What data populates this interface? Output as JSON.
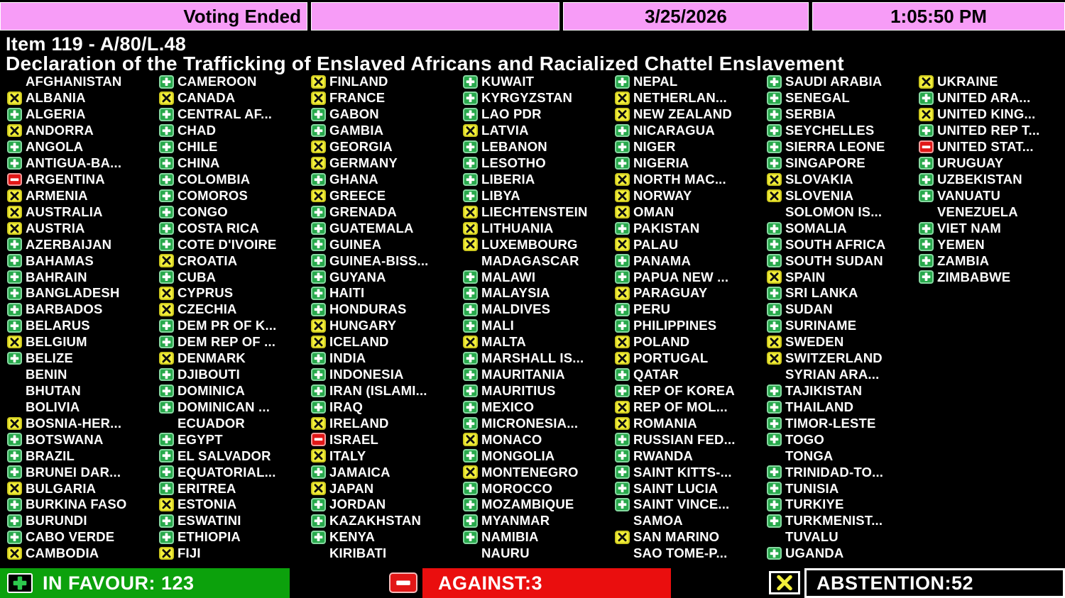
{
  "header": {
    "status": "Voting Ended",
    "date": "3/25/2026",
    "time": "1:05:50 PM"
  },
  "title": {
    "item": "Item 119 - A/80/L.48",
    "description": "Declaration of the Trafficking of Enslaved Africans and Racialized Chattel Enslavement"
  },
  "summary": {
    "in_favour": "IN FAVOUR: 123",
    "against": "AGAINST:3",
    "abstention": "ABSTENTION:52",
    "in_favour_count": 123,
    "against_count": 3,
    "abstention_count": 52
  },
  "colors": {
    "header_pink": "#F79CF7",
    "favour_green": "#28A94C",
    "abstain_yellow": "#F2EE3A",
    "against_red": "#E21717",
    "summary_green_bg": "#0CA10C",
    "summary_red_bg": "#EA0E0E",
    "text_white": "#FFFFFF",
    "background": "#000000"
  },
  "votes": {
    "legend": {
      "Y": "in-favour",
      "N": "against",
      "A": "abstention",
      "": "not-voting"
    },
    "columns": [
      [
        {
          "name": "AFGHANISTAN",
          "vote": ""
        },
        {
          "name": "ALBANIA",
          "vote": "A"
        },
        {
          "name": "ALGERIA",
          "vote": "Y"
        },
        {
          "name": "ANDORRA",
          "vote": "A"
        },
        {
          "name": "ANGOLA",
          "vote": "Y"
        },
        {
          "name": "ANTIGUA-BA...",
          "vote": "Y"
        },
        {
          "name": "ARGENTINA",
          "vote": "N"
        },
        {
          "name": "ARMENIA",
          "vote": "A"
        },
        {
          "name": "AUSTRALIA",
          "vote": "A"
        },
        {
          "name": "AUSTRIA",
          "vote": "A"
        },
        {
          "name": "AZERBAIJAN",
          "vote": "Y"
        },
        {
          "name": "BAHAMAS",
          "vote": "Y"
        },
        {
          "name": "BAHRAIN",
          "vote": "Y"
        },
        {
          "name": "BANGLADESH",
          "vote": "Y"
        },
        {
          "name": "BARBADOS",
          "vote": "Y"
        },
        {
          "name": "BELARUS",
          "vote": "Y"
        },
        {
          "name": "BELGIUM",
          "vote": "A"
        },
        {
          "name": "BELIZE",
          "vote": "Y"
        },
        {
          "name": "BENIN",
          "vote": ""
        },
        {
          "name": "BHUTAN",
          "vote": ""
        },
        {
          "name": "BOLIVIA",
          "vote": ""
        },
        {
          "name": "BOSNIA-HER...",
          "vote": "A"
        },
        {
          "name": "BOTSWANA",
          "vote": "Y"
        },
        {
          "name": "BRAZIL",
          "vote": "Y"
        },
        {
          "name": "BRUNEI DAR...",
          "vote": "Y"
        },
        {
          "name": "BULGARIA",
          "vote": "A"
        },
        {
          "name": "BURKINA FASO",
          "vote": "Y"
        },
        {
          "name": "BURUNDI",
          "vote": "Y"
        },
        {
          "name": "CABO VERDE",
          "vote": "Y"
        },
        {
          "name": "CAMBODIA",
          "vote": "A"
        }
      ],
      [
        {
          "name": "CAMEROON",
          "vote": "Y"
        },
        {
          "name": "CANADA",
          "vote": "A"
        },
        {
          "name": "CENTRAL AF...",
          "vote": "Y"
        },
        {
          "name": "CHAD",
          "vote": "Y"
        },
        {
          "name": "CHILE",
          "vote": "Y"
        },
        {
          "name": "CHINA",
          "vote": "Y"
        },
        {
          "name": "COLOMBIA",
          "vote": "Y"
        },
        {
          "name": "COMOROS",
          "vote": "Y"
        },
        {
          "name": "CONGO",
          "vote": "Y"
        },
        {
          "name": "COSTA RICA",
          "vote": "Y"
        },
        {
          "name": "COTE D'IVOIRE",
          "vote": "Y"
        },
        {
          "name": "CROATIA",
          "vote": "A"
        },
        {
          "name": "CUBA",
          "vote": "Y"
        },
        {
          "name": "CYPRUS",
          "vote": "A"
        },
        {
          "name": "CZECHIA",
          "vote": "A"
        },
        {
          "name": "DEM PR OF K...",
          "vote": "Y"
        },
        {
          "name": "DEM REP OF ...",
          "vote": "Y"
        },
        {
          "name": "DENMARK",
          "vote": "A"
        },
        {
          "name": "DJIBOUTI",
          "vote": "Y"
        },
        {
          "name": "DOMINICA",
          "vote": "Y"
        },
        {
          "name": "DOMINICAN ...",
          "vote": "Y"
        },
        {
          "name": "ECUADOR",
          "vote": ""
        },
        {
          "name": "EGYPT",
          "vote": "Y"
        },
        {
          "name": "EL SALVADOR",
          "vote": "Y"
        },
        {
          "name": "EQUATORIAL...",
          "vote": "Y"
        },
        {
          "name": "ERITREA",
          "vote": "Y"
        },
        {
          "name": "ESTONIA",
          "vote": "A"
        },
        {
          "name": "ESWATINI",
          "vote": "Y"
        },
        {
          "name": "ETHIOPIA",
          "vote": "Y"
        },
        {
          "name": "FIJI",
          "vote": "A"
        }
      ],
      [
        {
          "name": "FINLAND",
          "vote": "A"
        },
        {
          "name": "FRANCE",
          "vote": "A"
        },
        {
          "name": "GABON",
          "vote": "Y"
        },
        {
          "name": "GAMBIA",
          "vote": "Y"
        },
        {
          "name": "GEORGIA",
          "vote": "A"
        },
        {
          "name": "GERMANY",
          "vote": "A"
        },
        {
          "name": "GHANA",
          "vote": "Y"
        },
        {
          "name": "GREECE",
          "vote": "A"
        },
        {
          "name": "GRENADA",
          "vote": "Y"
        },
        {
          "name": "GUATEMALA",
          "vote": "Y"
        },
        {
          "name": "GUINEA",
          "vote": "Y"
        },
        {
          "name": "GUINEA-BISS...",
          "vote": "Y"
        },
        {
          "name": "GUYANA",
          "vote": "Y"
        },
        {
          "name": "HAITI",
          "vote": "Y"
        },
        {
          "name": "HONDURAS",
          "vote": "Y"
        },
        {
          "name": "HUNGARY",
          "vote": "A"
        },
        {
          "name": "ICELAND",
          "vote": "A"
        },
        {
          "name": "INDIA",
          "vote": "Y"
        },
        {
          "name": "INDONESIA",
          "vote": "Y"
        },
        {
          "name": "IRAN (ISLAMI...",
          "vote": "Y"
        },
        {
          "name": "IRAQ",
          "vote": "Y"
        },
        {
          "name": "IRELAND",
          "vote": "A"
        },
        {
          "name": "ISRAEL",
          "vote": "N"
        },
        {
          "name": "ITALY",
          "vote": "A"
        },
        {
          "name": "JAMAICA",
          "vote": "Y"
        },
        {
          "name": "JAPAN",
          "vote": "A"
        },
        {
          "name": "JORDAN",
          "vote": "Y"
        },
        {
          "name": "KAZAKHSTAN",
          "vote": "Y"
        },
        {
          "name": "KENYA",
          "vote": "Y"
        },
        {
          "name": "KIRIBATI",
          "vote": ""
        }
      ],
      [
        {
          "name": "KUWAIT",
          "vote": "Y"
        },
        {
          "name": "KYRGYZSTAN",
          "vote": "Y"
        },
        {
          "name": "LAO PDR",
          "vote": "Y"
        },
        {
          "name": "LATVIA",
          "vote": "A"
        },
        {
          "name": "LEBANON",
          "vote": "Y"
        },
        {
          "name": "LESOTHO",
          "vote": "Y"
        },
        {
          "name": "LIBERIA",
          "vote": "Y"
        },
        {
          "name": "LIBYA",
          "vote": "Y"
        },
        {
          "name": "LIECHTENSTEIN",
          "vote": "A"
        },
        {
          "name": "LITHUANIA",
          "vote": "A"
        },
        {
          "name": "LUXEMBOURG",
          "vote": "A"
        },
        {
          "name": "MADAGASCAR",
          "vote": ""
        },
        {
          "name": "MALAWI",
          "vote": "Y"
        },
        {
          "name": "MALAYSIA",
          "vote": "Y"
        },
        {
          "name": "MALDIVES",
          "vote": "Y"
        },
        {
          "name": "MALI",
          "vote": "Y"
        },
        {
          "name": "MALTA",
          "vote": "A"
        },
        {
          "name": "MARSHALL IS...",
          "vote": "Y"
        },
        {
          "name": "MAURITANIA",
          "vote": "Y"
        },
        {
          "name": "MAURITIUS",
          "vote": "Y"
        },
        {
          "name": "MEXICO",
          "vote": "Y"
        },
        {
          "name": "MICRONESIA...",
          "vote": "Y"
        },
        {
          "name": "MONACO",
          "vote": "A"
        },
        {
          "name": "MONGOLIA",
          "vote": "Y"
        },
        {
          "name": "MONTENEGRO",
          "vote": "A"
        },
        {
          "name": "MOROCCO",
          "vote": "Y"
        },
        {
          "name": "MOZAMBIQUE",
          "vote": "Y"
        },
        {
          "name": "MYANMAR",
          "vote": "Y"
        },
        {
          "name": "NAMIBIA",
          "vote": "Y"
        },
        {
          "name": "NAURU",
          "vote": ""
        }
      ],
      [
        {
          "name": "NEPAL",
          "vote": "Y"
        },
        {
          "name": "NETHERLAN...",
          "vote": "A"
        },
        {
          "name": "NEW ZEALAND",
          "vote": "A"
        },
        {
          "name": "NICARAGUA",
          "vote": "Y"
        },
        {
          "name": "NIGER",
          "vote": "Y"
        },
        {
          "name": "NIGERIA",
          "vote": "Y"
        },
        {
          "name": "NORTH MAC...",
          "vote": "A"
        },
        {
          "name": "NORWAY",
          "vote": "A"
        },
        {
          "name": "OMAN",
          "vote": "A"
        },
        {
          "name": "PAKISTAN",
          "vote": "Y"
        },
        {
          "name": "PALAU",
          "vote": "A"
        },
        {
          "name": "PANAMA",
          "vote": "Y"
        },
        {
          "name": "PAPUA NEW ...",
          "vote": "Y"
        },
        {
          "name": "PARAGUAY",
          "vote": "A"
        },
        {
          "name": "PERU",
          "vote": "Y"
        },
        {
          "name": "PHILIPPINES",
          "vote": "Y"
        },
        {
          "name": "POLAND",
          "vote": "A"
        },
        {
          "name": "PORTUGAL",
          "vote": "A"
        },
        {
          "name": "QATAR",
          "vote": "Y"
        },
        {
          "name": "REP OF KOREA",
          "vote": "Y"
        },
        {
          "name": "REP OF MOL...",
          "vote": "A"
        },
        {
          "name": "ROMANIA",
          "vote": "A"
        },
        {
          "name": "RUSSIAN FED...",
          "vote": "Y"
        },
        {
          "name": "RWANDA",
          "vote": "Y"
        },
        {
          "name": "SAINT KITTS-...",
          "vote": "Y"
        },
        {
          "name": "SAINT LUCIA",
          "vote": "Y"
        },
        {
          "name": "SAINT VINCE...",
          "vote": "Y"
        },
        {
          "name": "SAMOA",
          "vote": ""
        },
        {
          "name": "SAN MARINO",
          "vote": "A"
        },
        {
          "name": "SAO TOME-P...",
          "vote": ""
        }
      ],
      [
        {
          "name": "SAUDI ARABIA",
          "vote": "Y"
        },
        {
          "name": "SENEGAL",
          "vote": "Y"
        },
        {
          "name": "SERBIA",
          "vote": "Y"
        },
        {
          "name": "SEYCHELLES",
          "vote": "Y"
        },
        {
          "name": "SIERRA LEONE",
          "vote": "Y"
        },
        {
          "name": "SINGAPORE",
          "vote": "Y"
        },
        {
          "name": "SLOVAKIA",
          "vote": "A"
        },
        {
          "name": "SLOVENIA",
          "vote": "A"
        },
        {
          "name": "SOLOMON IS...",
          "vote": ""
        },
        {
          "name": "SOMALIA",
          "vote": "Y"
        },
        {
          "name": "SOUTH AFRICA",
          "vote": "Y"
        },
        {
          "name": "SOUTH SUDAN",
          "vote": "Y"
        },
        {
          "name": "SPAIN",
          "vote": "A"
        },
        {
          "name": "SRI LANKA",
          "vote": "Y"
        },
        {
          "name": "SUDAN",
          "vote": "Y"
        },
        {
          "name": "SURINAME",
          "vote": "Y"
        },
        {
          "name": "SWEDEN",
          "vote": "A"
        },
        {
          "name": "SWITZERLAND",
          "vote": "A"
        },
        {
          "name": "SYRIAN ARA...",
          "vote": ""
        },
        {
          "name": "TAJIKISTAN",
          "vote": "Y"
        },
        {
          "name": "THAILAND",
          "vote": "Y"
        },
        {
          "name": "TIMOR-LESTE",
          "vote": "Y"
        },
        {
          "name": "TOGO",
          "vote": "Y"
        },
        {
          "name": "TONGA",
          "vote": ""
        },
        {
          "name": "TRINIDAD-TO...",
          "vote": "Y"
        },
        {
          "name": "TUNISIA",
          "vote": "Y"
        },
        {
          "name": "TURKIYE",
          "vote": "Y"
        },
        {
          "name": "TURKMENIST...",
          "vote": "Y"
        },
        {
          "name": "TUVALU",
          "vote": ""
        },
        {
          "name": "UGANDA",
          "vote": "Y"
        }
      ],
      [
        {
          "name": "UKRAINE",
          "vote": "A"
        },
        {
          "name": "UNITED ARA...",
          "vote": "Y"
        },
        {
          "name": "UNITED KING...",
          "vote": "A"
        },
        {
          "name": "UNITED REP T...",
          "vote": "Y"
        },
        {
          "name": "UNITED STAT...",
          "vote": "N"
        },
        {
          "name": "URUGUAY",
          "vote": "Y"
        },
        {
          "name": "UZBEKISTAN",
          "vote": "Y"
        },
        {
          "name": "VANUATU",
          "vote": "Y"
        },
        {
          "name": "VENEZUELA",
          "vote": ""
        },
        {
          "name": "VIET NAM",
          "vote": "Y"
        },
        {
          "name": "YEMEN",
          "vote": "Y"
        },
        {
          "name": "ZAMBIA",
          "vote": "Y"
        },
        {
          "name": "ZIMBABWE",
          "vote": "Y"
        }
      ]
    ]
  }
}
